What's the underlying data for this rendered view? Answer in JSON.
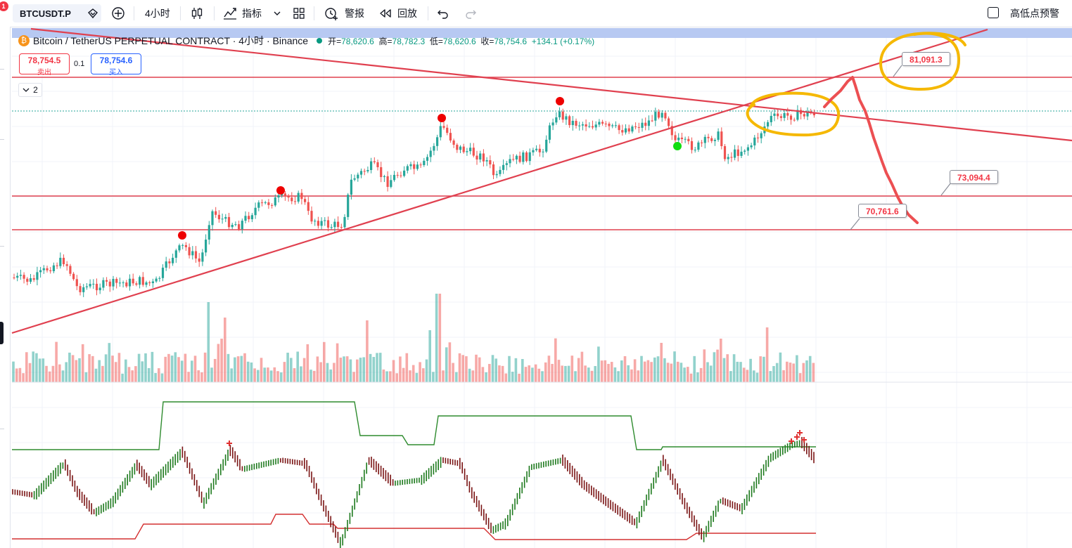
{
  "toolbar": {
    "notification_count": "1",
    "symbol": "BTCUSDT.P",
    "interval": "4小时",
    "indicators_label": "指标",
    "alert_label": "警报",
    "replay_label": "回放",
    "high_low_alert_label": "高低点预警"
  },
  "legend": {
    "btc_icon_glyph": "₿",
    "title": "Bitcoin / TetherUS PERPETUAL CONTRACT · 4小时 · Binance",
    "open_label": "开=",
    "open": "78,620.6",
    "high_label": "高=",
    "high": "78,782.3",
    "low_label": "低=",
    "low": "78,620.6",
    "close_label": "收=",
    "close": "78,754.6",
    "change": "+134.1 (+0.17%)"
  },
  "trade": {
    "sell_price": "78,754.5",
    "sell_label": "卖出",
    "spread": "0.1",
    "buy_price": "78,754.6",
    "buy_label": "买入"
  },
  "indicator_count": "2",
  "annotations": {
    "level_81091": "81,091.3",
    "level_73094": "73,094.4",
    "level_70761": "70,761.6"
  },
  "colors": {
    "up": "#26a69a",
    "down": "#ef5350",
    "trendline": "#e0404f",
    "highlight": "#f5b800",
    "sketch": "#ec4f52",
    "pivot_high": "#ee0000",
    "pivot_low": "#11dd11",
    "channel_upper": "#2e8b2e",
    "channel_lower": "#d43030"
  }
}
